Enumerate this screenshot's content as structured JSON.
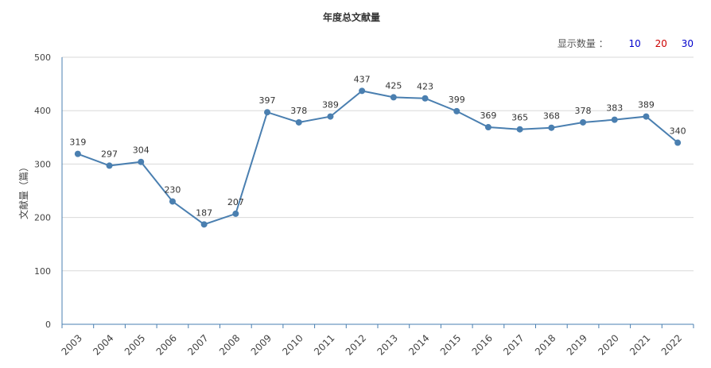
{
  "title": "年度总文献量",
  "count_selector": {
    "label": "显示数量 ：",
    "options": [
      {
        "label": "10",
        "color": "#0000cc"
      },
      {
        "label": "20",
        "color": "#cc0000"
      },
      {
        "label": "30",
        "color": "#0000cc"
      }
    ]
  },
  "chart_data": {
    "type": "line",
    "title": "年度总文献量",
    "ylabel": "文献量（篇）",
    "xlabel": "",
    "ylim": [
      0,
      500
    ],
    "yticks": [
      0,
      100,
      200,
      300,
      400,
      500
    ],
    "grid": true,
    "categories": [
      "2003",
      "2004",
      "2005",
      "2006",
      "2007",
      "2008",
      "2009",
      "2010",
      "2011",
      "2012",
      "2013",
      "2014",
      "2015",
      "2016",
      "2017",
      "2018",
      "2019",
      "2020",
      "2021",
      "2022"
    ],
    "series": [
      {
        "values": [
          319,
          297,
          304,
          230,
          187,
          207,
          397,
          378,
          389,
          437,
          425,
          423,
          399,
          369,
          365,
          368,
          378,
          383,
          389,
          340
        ],
        "color": "#4a7fb0"
      }
    ]
  }
}
